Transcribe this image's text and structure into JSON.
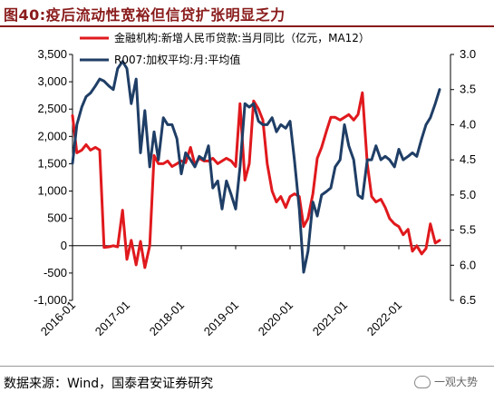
{
  "header": {
    "title": "图40:疫后流动性宽裕但信贷扩张明显乏力"
  },
  "footer": {
    "source": "数据来源：Wind，国泰君安证券研究",
    "watermark": "一观大势"
  },
  "chart_data": {
    "type": "line",
    "legend_position": "top",
    "grid": false,
    "x_ticks": [
      "2016-01",
      "2017-01",
      "2018-01",
      "2019-01",
      "2020-01",
      "2021-01",
      "2022-01"
    ],
    "y_left": {
      "lim": [
        -1000,
        3500
      ],
      "ticks": [
        "3,500",
        "3,000",
        "2,500",
        "2,000",
        "1,500",
        "1,000",
        "500",
        "0",
        "-500",
        "-1,000"
      ]
    },
    "y_right": {
      "lim": [
        6.5,
        3.0
      ],
      "inverted": true,
      "ticks": [
        "3.0",
        "3.5",
        "4.0",
        "4.5",
        "5.0",
        "5.5",
        "6.0",
        "6.5"
      ]
    },
    "series": [
      {
        "name": "金融机构:新增人民币贷款:当月同比（亿元，MA12）",
        "color": "#e0191d",
        "axis": "left",
        "x": [
          2016.0,
          2016.08,
          2016.17,
          2016.25,
          2016.33,
          2016.42,
          2016.5,
          2016.58,
          2016.67,
          2016.75,
          2016.83,
          2016.92,
          2017.0,
          2017.08,
          2017.17,
          2017.25,
          2017.33,
          2017.42,
          2017.5,
          2017.58,
          2017.67,
          2017.75,
          2017.83,
          2017.92,
          2018.0,
          2018.08,
          2018.17,
          2018.25,
          2018.33,
          2018.42,
          2018.5,
          2018.58,
          2018.67,
          2018.75,
          2018.83,
          2018.92,
          2019.0,
          2019.08,
          2019.17,
          2019.25,
          2019.33,
          2019.42,
          2019.5,
          2019.58,
          2019.67,
          2019.75,
          2019.83,
          2019.92,
          2020.0,
          2020.08,
          2020.17,
          2020.25,
          2020.33,
          2020.42,
          2020.5,
          2020.58,
          2020.67,
          2020.75,
          2020.83,
          2020.92,
          2021.0,
          2021.08,
          2021.17,
          2021.25,
          2021.33,
          2021.42,
          2021.5,
          2021.58,
          2021.67,
          2021.75,
          2021.83,
          2021.92,
          2022.0,
          2022.08,
          2022.17,
          2022.25,
          2022.33,
          2022.42,
          2022.5,
          2022.58,
          2022.67,
          2022.75
        ],
        "values": [
          2380,
          1700,
          1750,
          1850,
          1750,
          1800,
          1750,
          -30,
          -20,
          0,
          -20,
          650,
          -250,
          100,
          -350,
          80,
          -400,
          0,
          1650,
          1500,
          1500,
          1550,
          1450,
          1500,
          1550,
          1520,
          1800,
          1480,
          1600,
          1550,
          1550,
          1600,
          1500,
          1550,
          1600,
          1550,
          1450,
          2600,
          1200,
          1500,
          2650,
          2500,
          2300,
          1500,
          1000,
          800,
          900,
          700,
          900,
          950,
          900,
          350,
          500,
          950,
          1600,
          1800,
          2100,
          2350,
          2350,
          2300,
          2350,
          2400,
          2300,
          2400,
          2800,
          1500,
          900,
          800,
          850,
          700,
          500,
          400,
          350,
          200,
          300,
          -100,
          0,
          -150,
          -50,
          400,
          50,
          100
        ]
      },
      {
        "name": "R007:加权平均:月:平均值",
        "color": "#1f3e66",
        "axis": "right",
        "x": [
          2016.0,
          2016.08,
          2016.17,
          2016.25,
          2016.33,
          2016.42,
          2016.5,
          2016.58,
          2016.67,
          2016.75,
          2016.83,
          2016.92,
          2017.0,
          2017.08,
          2017.17,
          2017.25,
          2017.33,
          2017.42,
          2017.5,
          2017.58,
          2017.67,
          2017.75,
          2017.83,
          2017.92,
          2018.0,
          2018.08,
          2018.17,
          2018.25,
          2018.33,
          2018.42,
          2018.5,
          2018.58,
          2018.67,
          2018.75,
          2018.83,
          2018.92,
          2019.0,
          2019.08,
          2019.17,
          2019.25,
          2019.33,
          2019.42,
          2019.5,
          2019.58,
          2019.67,
          2019.75,
          2019.83,
          2019.92,
          2020.0,
          2020.08,
          2020.17,
          2020.25,
          2020.33,
          2020.42,
          2020.5,
          2020.58,
          2020.67,
          2020.75,
          2020.83,
          2020.92,
          2021.0,
          2021.08,
          2021.17,
          2021.25,
          2021.33,
          2021.42,
          2021.5,
          2021.58,
          2021.67,
          2021.75,
          2021.83,
          2021.92,
          2022.0,
          2022.08,
          2022.17,
          2022.25,
          2022.33,
          2022.42,
          2022.5,
          2022.58,
          2022.67,
          2022.75
        ],
        "values": [
          4.55,
          4.0,
          3.75,
          3.6,
          3.55,
          3.45,
          3.35,
          3.38,
          3.45,
          3.5,
          3.2,
          3.1,
          3.2,
          3.7,
          3.35,
          4.4,
          3.8,
          4.6,
          4.1,
          4.5,
          3.9,
          4.0,
          4.0,
          4.2,
          4.7,
          4.4,
          4.5,
          4.6,
          4.45,
          4.5,
          4.3,
          4.9,
          4.8,
          5.2,
          4.8,
          5.0,
          5.2,
          4.6,
          3.7,
          3.75,
          3.7,
          3.95,
          4.0,
          4.0,
          3.9,
          4.1,
          4.0,
          4.05,
          3.95,
          4.5,
          5.2,
          6.1,
          5.8,
          5.1,
          5.3,
          5.0,
          4.95,
          4.9,
          4.6,
          4.5,
          4.0,
          4.3,
          4.5,
          5.0,
          5.05,
          4.5,
          4.5,
          4.3,
          4.5,
          4.45,
          4.5,
          4.6,
          4.35,
          4.5,
          4.45,
          4.4,
          4.45,
          4.2,
          4.0,
          3.9,
          3.7,
          3.5
        ]
      }
    ]
  }
}
